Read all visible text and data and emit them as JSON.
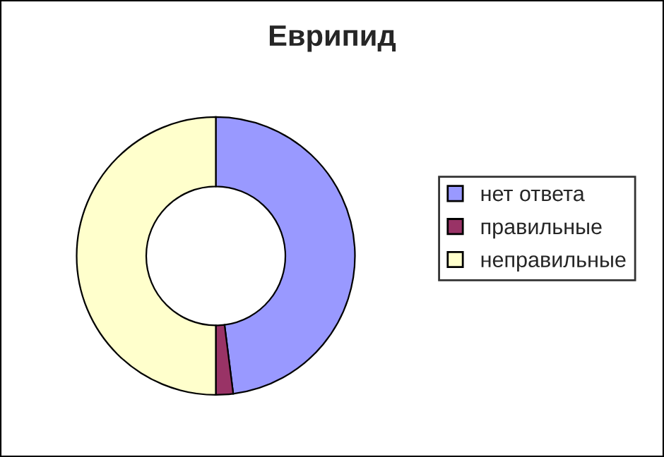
{
  "chart_data": {
    "type": "donut",
    "title": "Еврипид",
    "categories": [
      "нет ответа",
      "правильные",
      "неправильные"
    ],
    "values": [
      48,
      2,
      50
    ],
    "colors": [
      "#9999ff",
      "#993366",
      "#ffffcc"
    ],
    "legend": "right"
  }
}
